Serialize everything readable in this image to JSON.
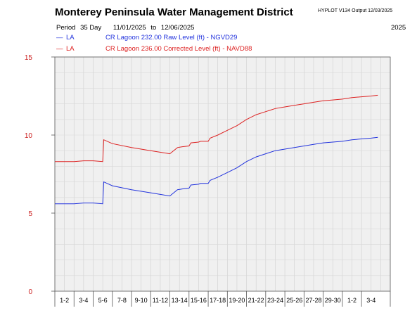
{
  "header": {
    "title": "Monterey Peninsula Water Management District",
    "version": "HYPLOT V134",
    "output": "Output 12/03/2025",
    "period_label": "Period",
    "period_length": "35 Day",
    "period_start": "11/01/2025",
    "period_to": "to",
    "period_end": "12/06/2025",
    "year": "2025"
  },
  "legend": [
    {
      "symbol": "—",
      "code": "LA",
      "description": "CR Lagoon  232.00 Raw Level (ft) - NGVD29",
      "color": "#2233dd"
    },
    {
      "symbol": "—",
      "code": "LA",
      "description": "CR Lagoon  236.00 Corrected Level (ft) - NAVD88",
      "color": "#dd2222"
    }
  ],
  "chart_data": {
    "type": "line",
    "ylim": [
      0,
      15
    ],
    "yticks": [
      "0",
      "5",
      "10",
      "15"
    ],
    "xlim": [
      0,
      35
    ],
    "xticks": [
      "1-2",
      "3-4",
      "5-6",
      "7-8",
      "9-10",
      "11-12",
      "13-14",
      "15-16",
      "17-18",
      "19-20",
      "21-22",
      "23-24",
      "25-26",
      "27-28",
      "29-30",
      "1-2",
      "3-4"
    ],
    "grid": true,
    "series": [
      {
        "name": "CR Lagoon  232.00 Raw Level (ft) - NGVD29",
        "color": "#2233dd",
        "x": [
          0,
          2,
          3,
          4,
          5,
          5.1,
          6,
          8,
          10,
          12,
          12.8,
          13.3,
          14,
          14.2,
          15,
          15.2,
          16,
          16.2,
          17,
          18,
          19,
          20,
          21,
          22,
          23,
          24,
          25,
          26,
          27,
          28,
          29,
          30,
          31,
          32,
          33,
          33.7
        ],
        "y": [
          5.6,
          5.6,
          5.65,
          5.65,
          5.6,
          7.0,
          6.75,
          6.5,
          6.3,
          6.1,
          6.5,
          6.55,
          6.6,
          6.8,
          6.85,
          6.9,
          6.9,
          7.1,
          7.3,
          7.6,
          7.9,
          8.3,
          8.6,
          8.8,
          9.0,
          9.1,
          9.2,
          9.3,
          9.4,
          9.5,
          9.55,
          9.6,
          9.7,
          9.75,
          9.8,
          9.85
        ]
      },
      {
        "name": "CR Lagoon  236.00 Corrected Level (ft) - NAVD88",
        "color": "#dd2222",
        "x": [
          0,
          2,
          3,
          4,
          5,
          5.1,
          6,
          8,
          10,
          12,
          12.8,
          13.3,
          14,
          14.2,
          15,
          15.2,
          16,
          16.2,
          17,
          18,
          19,
          20,
          21,
          22,
          23,
          24,
          25,
          26,
          27,
          28,
          29,
          30,
          31,
          32,
          33,
          33.7
        ],
        "y": [
          8.3,
          8.3,
          8.35,
          8.35,
          8.3,
          9.7,
          9.45,
          9.2,
          9.0,
          8.8,
          9.2,
          9.25,
          9.3,
          9.5,
          9.55,
          9.6,
          9.6,
          9.8,
          10.0,
          10.3,
          10.6,
          11.0,
          11.3,
          11.5,
          11.7,
          11.8,
          11.9,
          12.0,
          12.1,
          12.2,
          12.25,
          12.3,
          12.4,
          12.45,
          12.5,
          12.55
        ]
      }
    ]
  }
}
